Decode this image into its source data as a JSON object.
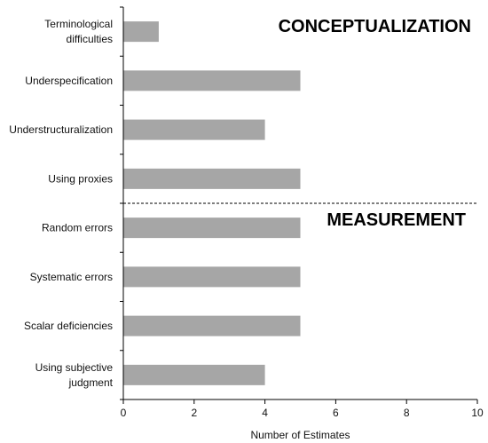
{
  "chart_data": {
    "type": "bar",
    "orientation": "horizontal",
    "categories": [
      [
        "Terminological",
        "difficulties"
      ],
      [
        "Underspecification"
      ],
      [
        "Understructuralization"
      ],
      [
        "Using proxies"
      ],
      [
        "Random errors"
      ],
      [
        "Systematic errors"
      ],
      [
        "Scalar deficiencies"
      ],
      [
        "Using subjective",
        "judgment"
      ]
    ],
    "values": [
      1,
      5,
      4,
      5,
      5,
      5,
      5,
      4
    ],
    "xlabel": "Number of Estimates",
    "xlim": [
      0,
      10
    ],
    "xticks": [
      0,
      2,
      4,
      6,
      8,
      10
    ],
    "grid": false,
    "bar_color": "#a6a6a6",
    "annotations": {
      "top_section": "CONCEPTUALIZATION",
      "bottom_section": "MEASUREMENT"
    },
    "divider_after_category_index": 3
  }
}
